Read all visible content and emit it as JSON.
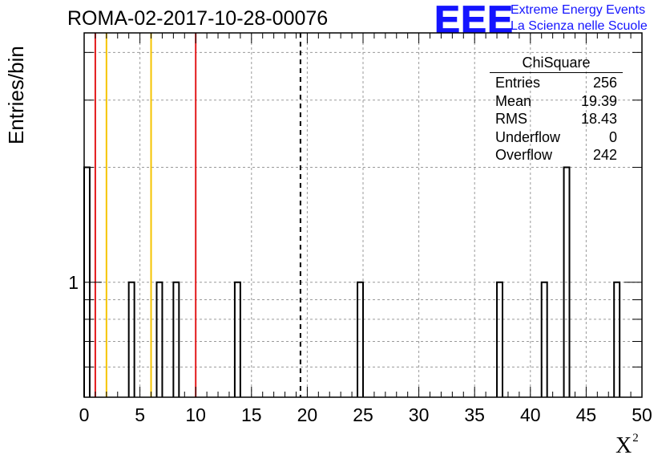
{
  "chart_data": {
    "type": "histogram",
    "title": "ROMA-02-2017-10-28-00076",
    "xlabel": "X",
    "xlabel_superscript": "2",
    "ylabel": "Entries/bin",
    "xlim": [
      0,
      50
    ],
    "y_scale": "log",
    "ylim": [
      0.5,
      4.5
    ],
    "bin_width": 0.5,
    "xticks": [
      0,
      5,
      10,
      15,
      20,
      25,
      30,
      35,
      40,
      45,
      50
    ],
    "ytick_labels": [
      "1"
    ],
    "grid": true,
    "bins": [
      {
        "x": 0.0,
        "count": 2
      },
      {
        "x": 4.0,
        "count": 1
      },
      {
        "x": 6.5,
        "count": 1
      },
      {
        "x": 8.0,
        "count": 1
      },
      {
        "x": 13.5,
        "count": 1
      },
      {
        "x": 24.5,
        "count": 1
      },
      {
        "x": 37.0,
        "count": 1
      },
      {
        "x": 41.0,
        "count": 1
      },
      {
        "x": 43.0,
        "count": 2
      },
      {
        "x": 47.5,
        "count": 1
      }
    ],
    "vertical_lines": [
      {
        "x": 1.0,
        "color": "#e31a1c",
        "style": "solid"
      },
      {
        "x": 2.0,
        "color": "#f5c400",
        "style": "solid"
      },
      {
        "x": 6.0,
        "color": "#f5c400",
        "style": "solid"
      },
      {
        "x": 10.0,
        "color": "#e31a1c",
        "style": "solid"
      },
      {
        "x": 19.39,
        "color": "#000000",
        "style": "dashed"
      }
    ],
    "stats": {
      "title": "ChiSquare",
      "rows": [
        {
          "label": "Entries",
          "value": "256"
        },
        {
          "label": "Mean",
          "value": "19.39"
        },
        {
          "label": "RMS",
          "value": "18.43"
        },
        {
          "label": "Underflow",
          "value": "0"
        },
        {
          "label": "Overflow",
          "value": "242"
        }
      ]
    }
  },
  "brand": {
    "logo": "EEE",
    "line1": "Extreme Energy Events",
    "line2": "La Scienza nelle Scuole",
    "color": "#1414ff"
  }
}
